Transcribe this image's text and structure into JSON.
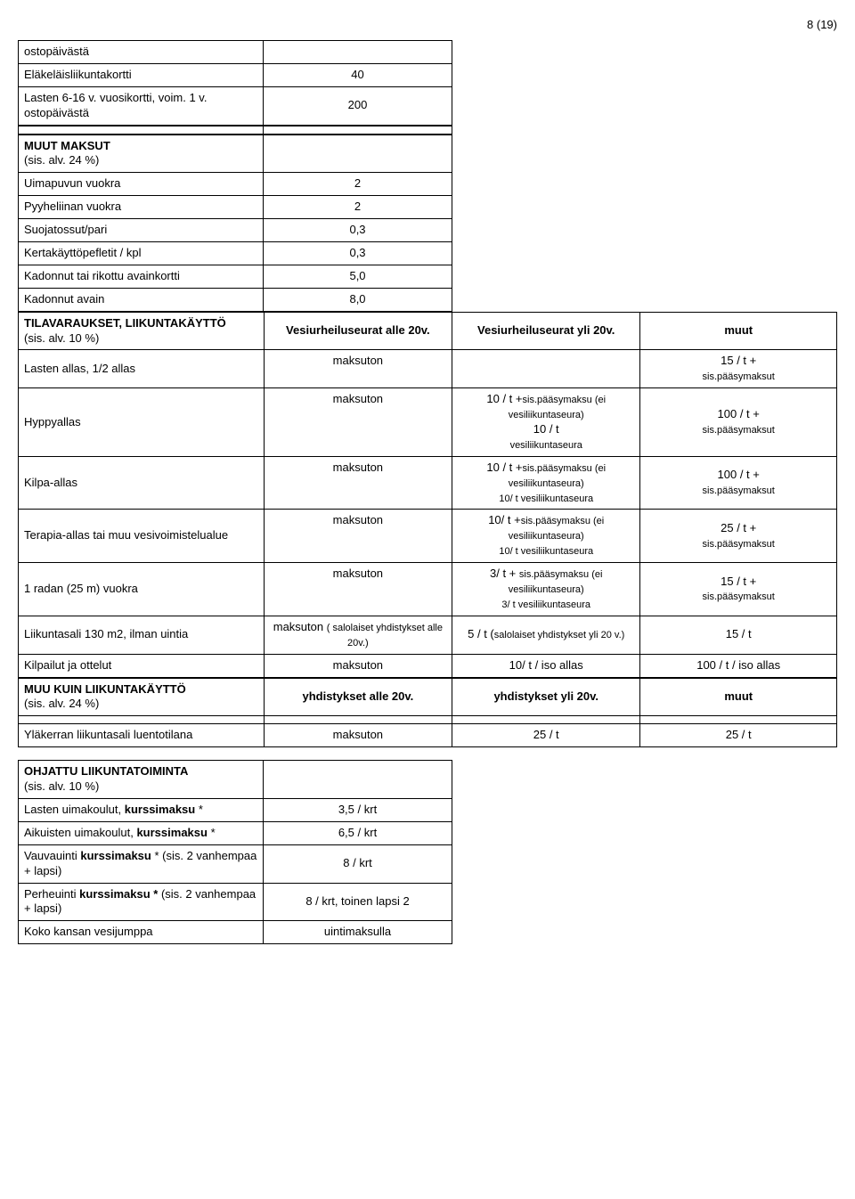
{
  "page_number": "8 (19)",
  "table1": {
    "rows": [
      {
        "c1": "ostopäivästä",
        "c2": ""
      },
      {
        "c1": "Eläkeläisliikuntakortti",
        "c2": "40"
      },
      {
        "c1": "Lasten 6-16 v. vuosikortti, voim. 1 v. ostopäivästä",
        "c2": "200"
      }
    ]
  },
  "table2_header": {
    "c1_bold": "MUUT MAKSUT",
    "c1_sub": "(sis. alv. 24 %)"
  },
  "table2_rows": [
    {
      "c1": "Uimapuvun vuokra",
      "c2": "2"
    },
    {
      "c1": "Pyyheliinan vuokra",
      "c2": "2"
    },
    {
      "c1": "Suojatossut/pari",
      "c2": "0,3"
    },
    {
      "c1": "Kertakäyttöpefletit / kpl",
      "c2": "0,3"
    },
    {
      "c1": "Kadonnut tai rikottu avainkortti",
      "c2": "5,0"
    },
    {
      "c1": "Kadonnut avain",
      "c2": "8,0"
    }
  ],
  "section3_header": {
    "c1_bold": "TILAVARAUKSET, LIIKUNTAKÄYTTÖ",
    "c1_sub": "(sis. alv. 10 %)",
    "c2": "Vesiurheiluseurat alle 20v.",
    "c3": "Vesiurheiluseurat yli 20v.",
    "c4": "muut"
  },
  "section3_rows": [
    {
      "c1": "Lasten allas, 1/2 allas",
      "c2": "maksuton",
      "c3": "",
      "c4_top": "15 / t +",
      "c4_sub": "sis.pääsymaksut"
    },
    {
      "c1": "Hyppyallas",
      "c2": "maksuton",
      "c3_top": "10 / t +",
      "c3_sub1": "sis.pääsymaksu (ei vesiliikuntaseura)",
      "c3_mid": "10  / t",
      "c3_sub2": "vesiliikuntaseura",
      "c4_top": "100 / t +",
      "c4_sub": "sis.pääsymaksut"
    },
    {
      "c1": "Kilpa-allas",
      "c2": "maksuton",
      "c3_top": "10 / t +",
      "c3_sub1": "sis.pääsymaksu (ei vesiliikuntaseura)",
      "c3_sub2": "10/ t vesiliikuntaseura",
      "c4_top": "100 / t +",
      "c4_sub": "sis.pääsymaksut"
    },
    {
      "c1": "Terapia-allas tai muu vesivoimistelualue",
      "c2": "maksuton",
      "c3_top": "10/ t +",
      "c3_sub1": "sis.pääsymaksu (ei vesiliikuntaseura)",
      "c3_sub2": "10/ t vesiliikuntaseura",
      "c4_top": "25 / t +",
      "c4_sub": "sis.pääsymaksut"
    },
    {
      "c1": "1 radan (25 m) vuokra",
      "c2": "maksuton",
      "c3_top": "3/ t + ",
      "c3_sub1": "sis.pääsymaksu (ei vesiliikuntaseura)",
      "c3_sub2": "3/ t vesiliikuntaseura",
      "c4_top": "15 / t +",
      "c4_sub": "sis.pääsymaksut"
    },
    {
      "c1": "Liikuntasali 130 m2, ilman uintia",
      "c2_top": "maksuton",
      "c2_sub": "( salolaiset yhdistykset alle 20v.)",
      "c3_top": "5 / t (",
      "c3_sub": "salolaiset yhdistykset yli 20 v.)",
      "c4": "15 / t"
    },
    {
      "c1": "Kilpailut ja ottelut",
      "c2": "maksuton",
      "c3": "10/ t / iso allas",
      "c4": "100 / t / iso allas"
    }
  ],
  "section4_header": {
    "c1_bold": "MUU KUIN LIIKUNTAKÄYTTÖ",
    "c1_sub": "(sis. alv. 24 %)",
    "c2": "yhdistykset alle 20v.",
    "c3": "yhdistykset yli 20v.",
    "c4": "muut"
  },
  "section4_rows": [
    {
      "c1": "Yläkerran liikuntasali luentotilana",
      "c2": "maksuton",
      "c3": "25 / t",
      "c4": "25 / t"
    }
  ],
  "section5_header": {
    "c1_bold": "OHJATTU LIIKUNTATOIMINTA",
    "c1_sub": "(sis. alv. 10 %)"
  },
  "section5_rows": [
    {
      "c1_a": "Lasten uimakoulut, ",
      "c1_b": "kurssimaksu",
      "c1_c": " *",
      "c2": "3,5 / krt"
    },
    {
      "c1_a": "Aikuisten uimakoulut, ",
      "c1_b": "kurssimaksu",
      "c1_c": " *",
      "c2": "6,5 / krt"
    },
    {
      "c1_a": "Vauvauinti ",
      "c1_b": "kurssimaksu",
      "c1_c": " * (sis. 2 vanhempaa + lapsi)",
      "c2": "8 / krt"
    },
    {
      "c1_a": "Perheuinti ",
      "c1_b": "kurssimaksu *",
      "c1_c": " (sis. 2 vanhempaa + lapsi)",
      "c2": "8 / krt, toinen lapsi 2"
    },
    {
      "c1_a": "Koko kansan vesijumppa",
      "c1_b": "",
      "c1_c": "",
      "c2": "uintimaksulla"
    }
  ]
}
